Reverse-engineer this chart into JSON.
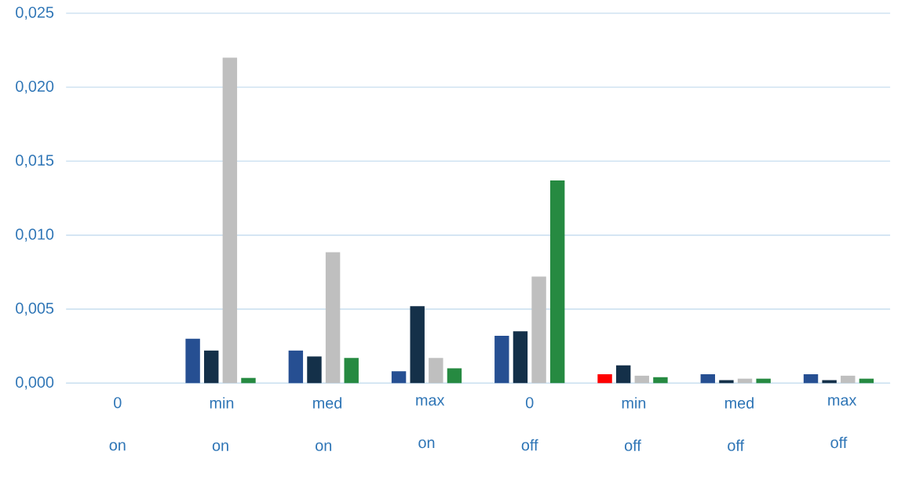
{
  "chart_data": {
    "type": "bar",
    "categories": [
      "0 on",
      "min on",
      "med on",
      "max on",
      "0 off",
      "min off",
      "med off",
      "max off"
    ],
    "series": [
      {
        "color": "#264f92",
        "colors": [
          null,
          null,
          null,
          null,
          null,
          "#ff0000",
          null,
          null
        ],
        "values": [
          0,
          0.003,
          0.0022,
          0.0008,
          0.0032,
          0.0006,
          0.0006,
          0.0006
        ]
      },
      {
        "color": "#143049",
        "values": [
          0,
          0.0022,
          0.0018,
          0.0052,
          0.0035,
          0.0012,
          0.0002,
          0.0002
        ]
      },
      {
        "color": "#bfbfbf",
        "values": [
          0,
          0.022,
          0.00885,
          0.0017,
          0.0072,
          0.0005,
          0.0003,
          0.0005
        ]
      },
      {
        "color": "#268a41",
        "values": [
          0,
          0.00035,
          0.0017,
          0.001,
          0.0137,
          0.0004,
          0.0003,
          0.0003
        ]
      }
    ],
    "ylim": [
      0,
      0.025
    ],
    "yticks": [
      {
        "value": 0,
        "label": "0,000"
      },
      {
        "value": 0.005,
        "label": "0,005"
      },
      {
        "value": 0.01,
        "label": "0,010"
      },
      {
        "value": 0.015,
        "label": "0,015"
      },
      {
        "value": 0.02,
        "label": "0,020"
      },
      {
        "value": 0.025,
        "label": "0,025"
      }
    ],
    "grid": "y"
  }
}
